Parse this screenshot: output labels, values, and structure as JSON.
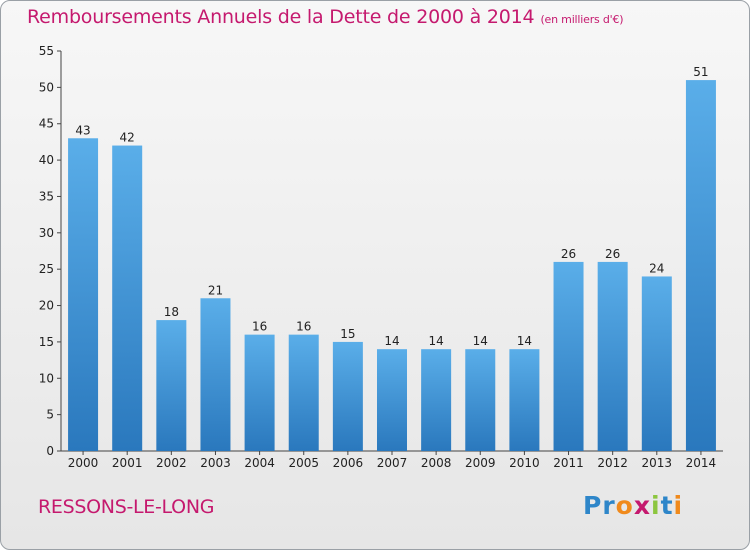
{
  "chart_data": {
    "type": "bar",
    "title": "Remboursements Annuels de la Dette de 2000 à 2014",
    "unit": "(en milliers d'€)",
    "categories": [
      "2000",
      "2001",
      "2002",
      "2003",
      "2004",
      "2005",
      "2006",
      "2007",
      "2008",
      "2009",
      "2010",
      "2011",
      "2012",
      "2013",
      "2014"
    ],
    "values": [
      43,
      42,
      18,
      21,
      16,
      16,
      15,
      14,
      14,
      14,
      14,
      26,
      26,
      24,
      51
    ],
    "ylim": [
      0,
      55
    ],
    "yticks": [
      0,
      5,
      10,
      15,
      20,
      25,
      30,
      35,
      40,
      45,
      50,
      55
    ],
    "xlabel": "",
    "ylabel": "",
    "grid": false,
    "bar_color": "#3f8fd6"
  },
  "footer": {
    "commune": "RESSONS-LE-LONG",
    "logo_text": "Proxiti",
    "logo_letters": [
      "P",
      "r",
      "o",
      "x",
      "i",
      "t",
      "i"
    ],
    "logo_colors": [
      "#2e86c9",
      "#2e86c9",
      "#f08a1c",
      "#c5196e",
      "#8cc63f",
      "#2e86c9",
      "#f08a1c"
    ]
  },
  "colors": {
    "title": "#c5196e",
    "axis": "#444444"
  }
}
